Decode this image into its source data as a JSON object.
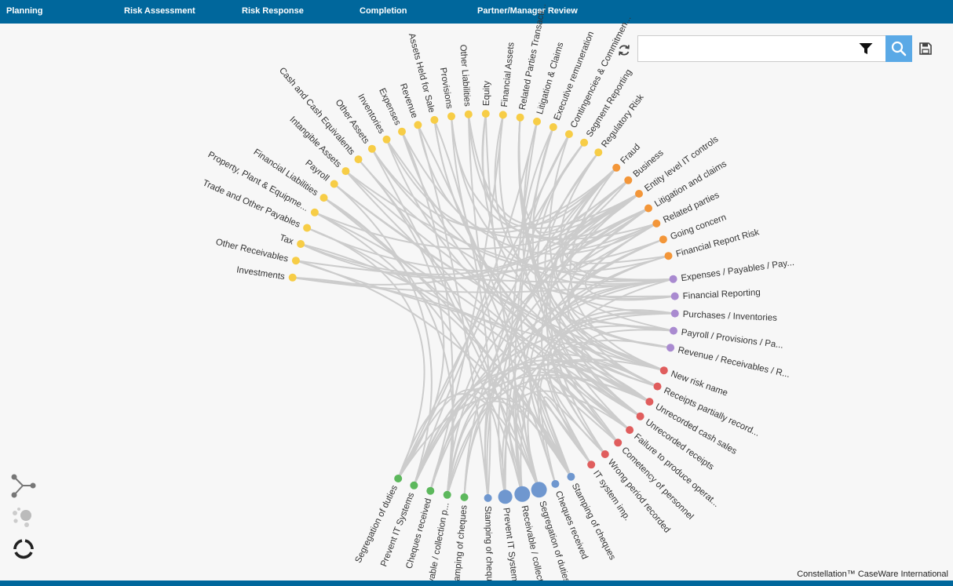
{
  "nav": {
    "tabs": [
      {
        "label": "Planning"
      },
      {
        "label": "Risk Assessment"
      },
      {
        "label": "Risk Response"
      },
      {
        "label": "Completion"
      },
      {
        "label": "Partner/Manager Review"
      }
    ]
  },
  "search": {
    "value": "",
    "placeholder": ""
  },
  "footer": "Constellation™ CaseWare International",
  "colors": {
    "nav_bar": "#00679c",
    "search_button": "#5aa9e6",
    "link": "#cccccc",
    "group_accounts": "#f7cd46",
    "group_risks": "#f39639",
    "group_areas": "#a98ad0",
    "group_risk_items": "#e05d5d",
    "group_responses_blue": "#6f97cf",
    "group_responses_green": "#5cb85c"
  },
  "icons": {
    "refresh": "refresh-icon",
    "filter": "filter-icon",
    "search": "search-icon",
    "save": "save-icon",
    "view_network": "network-view-icon",
    "view_bubble": "bubble-view-icon",
    "view_circle": "circle-view-icon"
  },
  "nodes": [
    {
      "label": "Investments",
      "group": "accounts"
    },
    {
      "label": "Other Receivables",
      "group": "accounts"
    },
    {
      "label": "Tax",
      "group": "accounts"
    },
    {
      "label": "Trade and Other Payables",
      "group": "accounts"
    },
    {
      "label": "Property, Plant & Equipme...",
      "group": "accounts"
    },
    {
      "label": "Financial Liabilities",
      "group": "accounts"
    },
    {
      "label": "Payroll",
      "group": "accounts"
    },
    {
      "label": "Intangible Assets",
      "group": "accounts"
    },
    {
      "label": "Cash and Cash Equivalents",
      "group": "accounts"
    },
    {
      "label": "Other Assets",
      "group": "accounts"
    },
    {
      "label": "Inventories",
      "group": "accounts"
    },
    {
      "label": "Expenses",
      "group": "accounts"
    },
    {
      "label": "Revenue",
      "group": "accounts"
    },
    {
      "label": "Assets Held for Sale",
      "group": "accounts"
    },
    {
      "label": "Provisions",
      "group": "accounts"
    },
    {
      "label": "Other Liabilities",
      "group": "accounts"
    },
    {
      "label": "Equity",
      "group": "accounts"
    },
    {
      "label": "Financial Assets",
      "group": "accounts"
    },
    {
      "label": "Related Parties Transacti...",
      "group": "accounts"
    },
    {
      "label": "Litigation & Claims",
      "group": "accounts"
    },
    {
      "label": "Executive remuneration",
      "group": "accounts"
    },
    {
      "label": "Contingencies & Commitmen...",
      "group": "accounts"
    },
    {
      "label": "Segment Reporting",
      "group": "accounts"
    },
    {
      "label": "Regulatory Risk",
      "group": "accounts"
    },
    {
      "label": "Fraud",
      "group": "risks"
    },
    {
      "label": "Business",
      "group": "risks"
    },
    {
      "label": "Entity level IT controls",
      "group": "risks"
    },
    {
      "label": "Litigation and claims",
      "group": "risks"
    },
    {
      "label": "Related parties",
      "group": "risks"
    },
    {
      "label": "Going concern",
      "group": "risks"
    },
    {
      "label": "Financial Report Risk",
      "group": "risks"
    },
    {
      "label": "Expenses / Payables / Pay...",
      "group": "areas"
    },
    {
      "label": "Financial Reporting",
      "group": "areas"
    },
    {
      "label": "Purchases / Inventories",
      "group": "areas"
    },
    {
      "label": "Payroll / Provisions / Pa...",
      "group": "areas"
    },
    {
      "label": "Revenue / Receivables / R...",
      "group": "areas"
    },
    {
      "label": "New risk name",
      "group": "risk_items"
    },
    {
      "label": "Receipts partially record...",
      "group": "risk_items"
    },
    {
      "label": "Unrecorded cash sales",
      "group": "risk_items"
    },
    {
      "label": "Unrecorded receipts",
      "group": "risk_items"
    },
    {
      "label": "Failure to produce operat...",
      "group": "risk_items"
    },
    {
      "label": "Cometency of personnel",
      "group": "risk_items"
    },
    {
      "label": "Wrong period recorded",
      "group": "risk_items"
    },
    {
      "label": "IT system imp.",
      "group": "risk_items"
    },
    {
      "label": "Stamping of cheques",
      "group": "responses_blue"
    },
    {
      "label": "Cheques received",
      "group": "responses_blue"
    },
    {
      "label": "Segregation of duties",
      "group": "responses_blue"
    },
    {
      "label": "Receivable / collection p...",
      "group": "responses_blue"
    },
    {
      "label": "Prevent IT Systems",
      "group": "responses_blue"
    },
    {
      "label": "Stamping of cheques",
      "group": "responses_blue"
    },
    {
      "label": "Stamping of cheques",
      "group": "responses_green"
    },
    {
      "label": "Receivable / collection p...",
      "group": "responses_green"
    },
    {
      "label": "Cheques received",
      "group": "responses_green"
    },
    {
      "label": "Prevent IT Systems",
      "group": "responses_green"
    },
    {
      "label": "Segregation of duties",
      "group": "responses_green"
    }
  ]
}
